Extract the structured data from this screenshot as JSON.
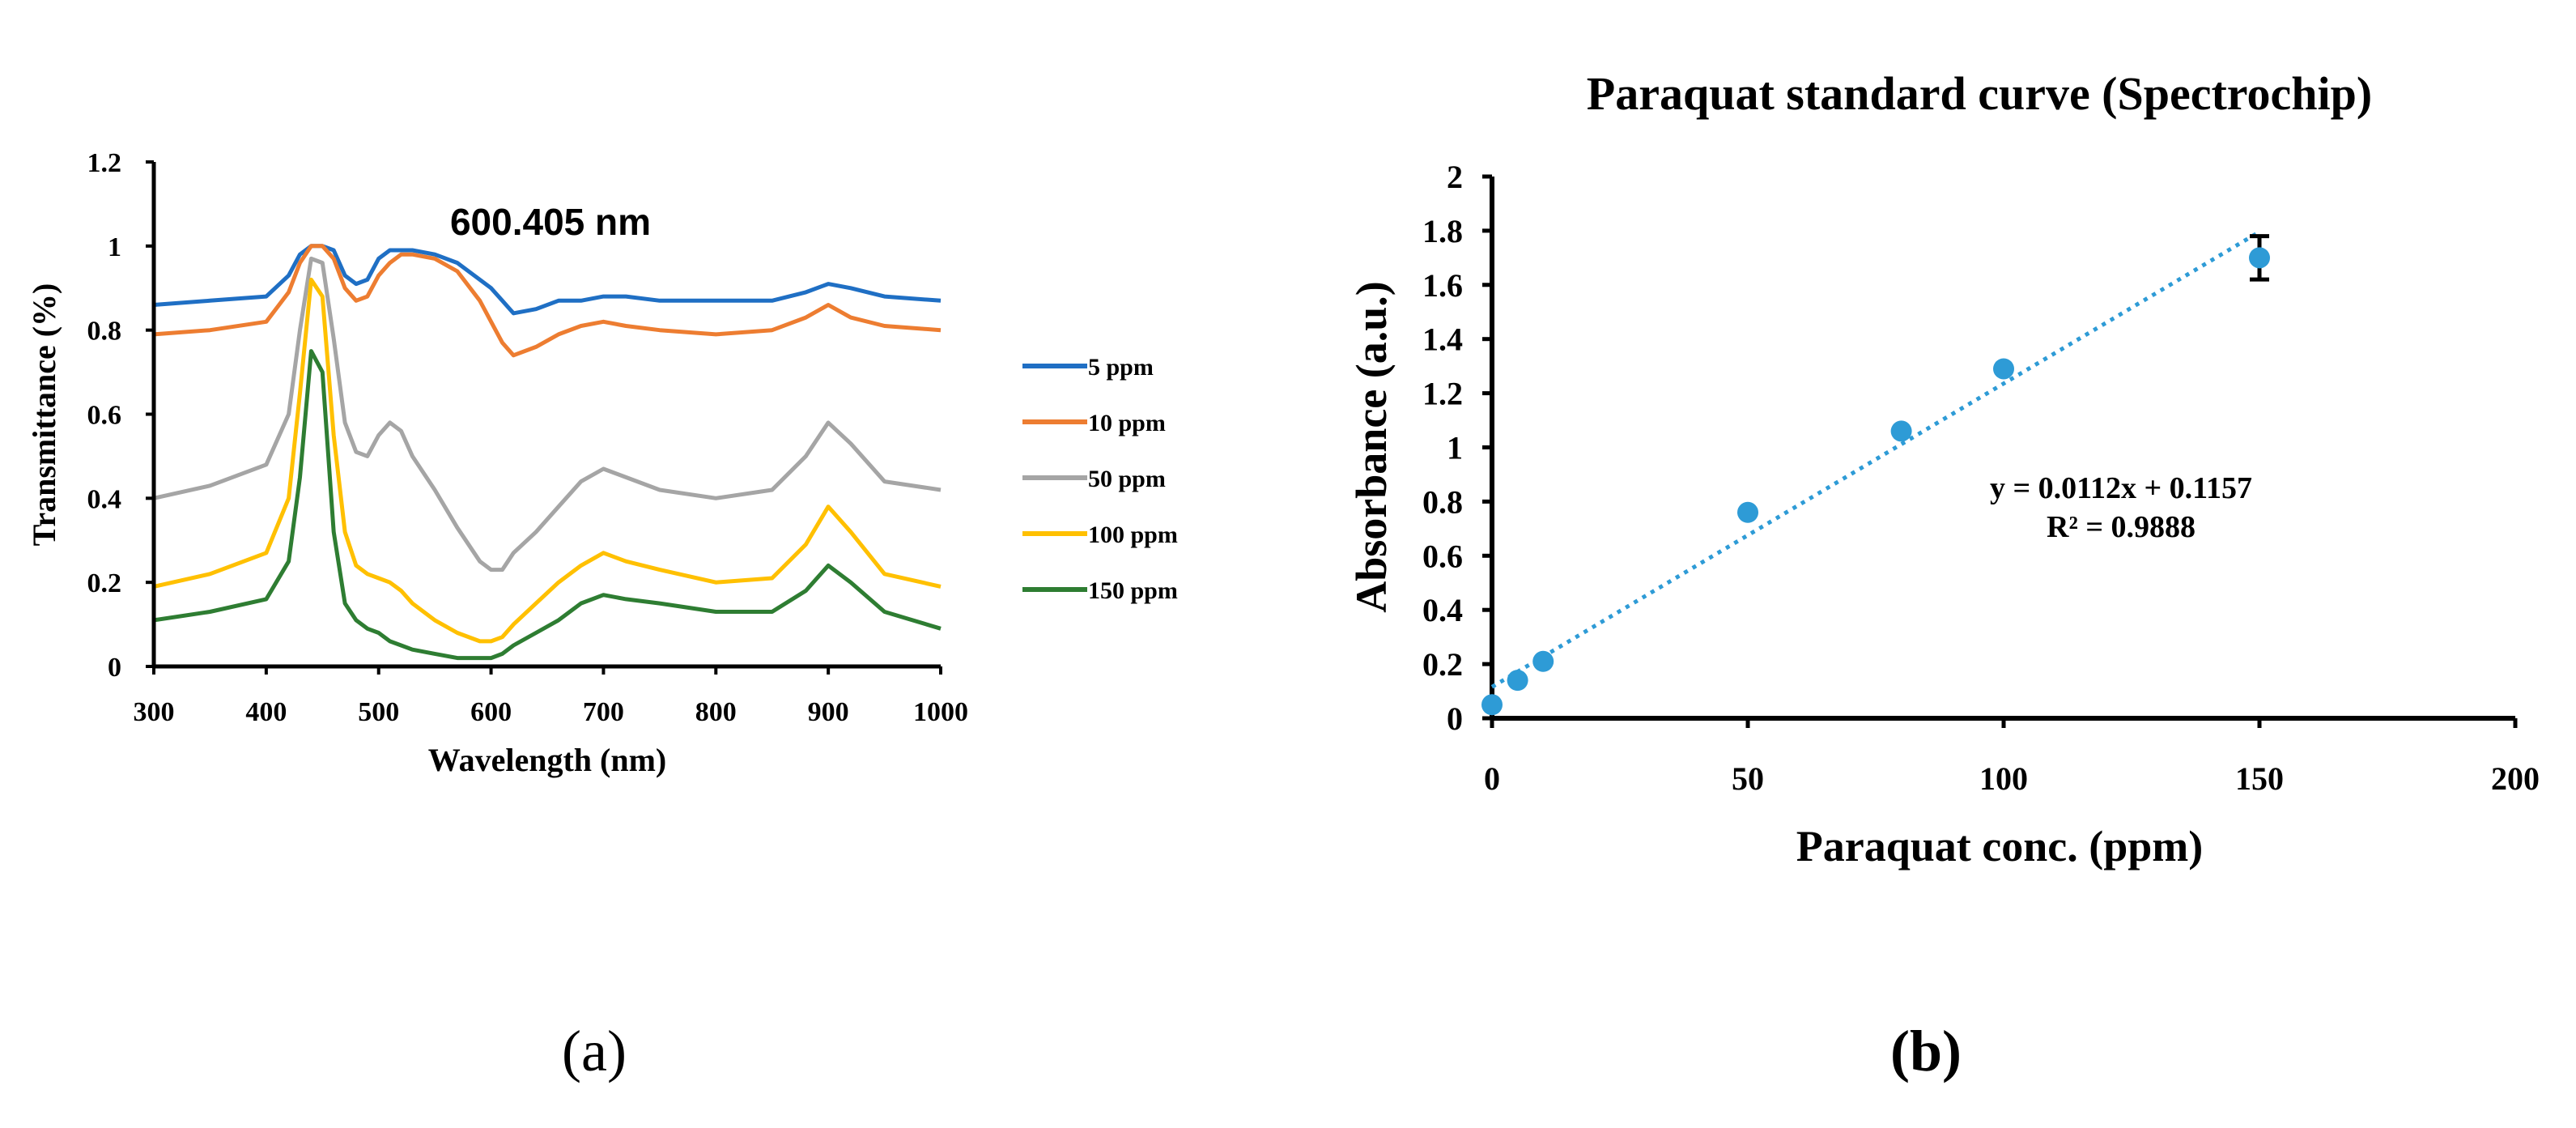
{
  "chart_data": [
    {
      "type": "line",
      "panel_label": "(a)",
      "title": "",
      "annotation": "600.405 nm",
      "xlabel": "Wavelength (nm)",
      "ylabel": "Transmittance (%)",
      "xlim": [
        300,
        1000
      ],
      "ylim": [
        0,
        1.2
      ],
      "xticks": [
        "300",
        "400",
        "500",
        "600",
        "700",
        "800",
        "900",
        "1000"
      ],
      "yticks": [
        "0",
        "0.2",
        "0.4",
        "0.6",
        "0.8",
        "1",
        "1.2"
      ],
      "x": [
        300,
        350,
        400,
        420,
        430,
        440,
        450,
        460,
        470,
        480,
        490,
        500,
        510,
        520,
        530,
        550,
        570,
        590,
        600,
        610,
        620,
        640,
        660,
        680,
        700,
        720,
        750,
        800,
        850,
        880,
        900,
        920,
        950,
        1000
      ],
      "series": [
        {
          "name": "5 ppm",
          "color": "#1f6fc4",
          "values": [
            0.86,
            0.87,
            0.88,
            0.93,
            0.98,
            1.0,
            1.0,
            0.99,
            0.93,
            0.91,
            0.92,
            0.97,
            0.99,
            0.99,
            0.99,
            0.98,
            0.96,
            0.92,
            0.9,
            0.87,
            0.84,
            0.85,
            0.87,
            0.87,
            0.88,
            0.88,
            0.87,
            0.87,
            0.87,
            0.89,
            0.91,
            0.9,
            0.88,
            0.87
          ]
        },
        {
          "name": "10 ppm",
          "color": "#ed7d31",
          "values": [
            0.79,
            0.8,
            0.82,
            0.89,
            0.96,
            1.0,
            1.0,
            0.97,
            0.9,
            0.87,
            0.88,
            0.93,
            0.96,
            0.98,
            0.98,
            0.97,
            0.94,
            0.87,
            0.82,
            0.77,
            0.74,
            0.76,
            0.79,
            0.81,
            0.82,
            0.81,
            0.8,
            0.79,
            0.8,
            0.83,
            0.86,
            0.83,
            0.81,
            0.8
          ]
        },
        {
          "name": "50 ppm",
          "color": "#a5a5a5",
          "values": [
            0.4,
            0.43,
            0.48,
            0.6,
            0.8,
            0.97,
            0.96,
            0.78,
            0.58,
            0.51,
            0.5,
            0.55,
            0.58,
            0.56,
            0.5,
            0.42,
            0.33,
            0.25,
            0.23,
            0.23,
            0.27,
            0.32,
            0.38,
            0.44,
            0.47,
            0.45,
            0.42,
            0.4,
            0.42,
            0.5,
            0.58,
            0.53,
            0.44,
            0.42
          ]
        },
        {
          "name": "100 ppm",
          "color": "#ffc000",
          "values": [
            0.19,
            0.22,
            0.27,
            0.4,
            0.65,
            0.92,
            0.88,
            0.55,
            0.32,
            0.24,
            0.22,
            0.21,
            0.2,
            0.18,
            0.15,
            0.11,
            0.08,
            0.06,
            0.06,
            0.07,
            0.1,
            0.15,
            0.2,
            0.24,
            0.27,
            0.25,
            0.23,
            0.2,
            0.21,
            0.29,
            0.38,
            0.32,
            0.22,
            0.19
          ]
        },
        {
          "name": "150 ppm",
          "color": "#2e7d32",
          "values": [
            0.11,
            0.13,
            0.16,
            0.25,
            0.45,
            0.75,
            0.7,
            0.32,
            0.15,
            0.11,
            0.09,
            0.08,
            0.06,
            0.05,
            0.04,
            0.03,
            0.02,
            0.02,
            0.02,
            0.03,
            0.05,
            0.08,
            0.11,
            0.15,
            0.17,
            0.16,
            0.15,
            0.13,
            0.13,
            0.18,
            0.24,
            0.2,
            0.13,
            0.09
          ]
        }
      ]
    },
    {
      "type": "scatter",
      "panel_label": "(b)",
      "title": "Paraquat standard curve (Spectrochip)",
      "xlabel": "Paraquat conc. (ppm)",
      "ylabel": "Absorbance (a.u.)",
      "xlim": [
        0,
        200
      ],
      "ylim": [
        0,
        2
      ],
      "xticks": [
        "0",
        "50",
        "100",
        "150",
        "200"
      ],
      "yticks": [
        "0",
        "0.2",
        "0.4",
        "0.6",
        "0.8",
        "1",
        "1.2",
        "1.4",
        "1.6",
        "1.8",
        "2"
      ],
      "color": "#2e9bd6",
      "x": [
        0,
        5,
        10,
        50,
        80,
        100,
        150
      ],
      "y": [
        0.05,
        0.14,
        0.21,
        0.76,
        1.06,
        1.29,
        1.7
      ],
      "error_bar": {
        "x": 150,
        "low": 1.62,
        "high": 1.78
      },
      "trendline": {
        "slope": 0.0112,
        "intercept": 0.1157,
        "x_range": [
          0,
          150
        ]
      },
      "equation": "y = 0.0112x + 0.1157",
      "r_squared": "R² = 0.9888"
    }
  ]
}
